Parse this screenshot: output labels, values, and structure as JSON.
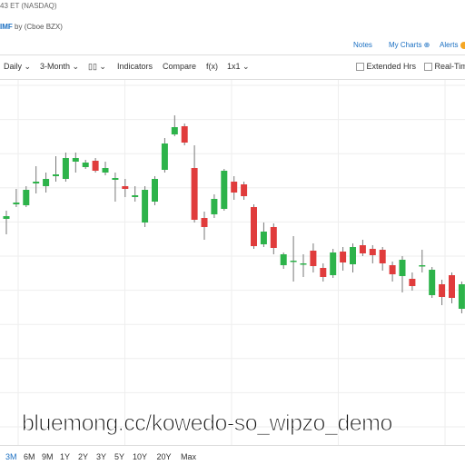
{
  "header": {
    "exchange_time": "43 ET (NASDAQ)",
    "symbol": "IMF",
    "source": "by (Cboe BZX)",
    "notes": "Notes",
    "my_charts": "My Charts",
    "alerts": "Alerts"
  },
  "toolbar": {
    "interval": "Daily",
    "period": "3-Month",
    "indicators": "Indicators",
    "compare": "Compare",
    "fx": "f(x)",
    "layout": "1x1",
    "extended_hours": "Extended Hrs",
    "real_time": "Real-Time"
  },
  "ranges": [
    "3M",
    "6M",
    "9M",
    "1Y",
    "2Y",
    "3Y",
    "5Y",
    "10Y",
    "20Y",
    "Max"
  ],
  "watermark": "bluemong.cc/kowedo-so_wipzo_demo",
  "chart_data": {
    "type": "candlestick",
    "ylim": [
      0,
      352
    ],
    "up_color": "#2db34a",
    "down_color": "#e03c3c",
    "candles": [
      {
        "open": 199,
        "high": 208,
        "low": 182,
        "close": 202
      },
      {
        "open": 215,
        "high": 232,
        "low": 212,
        "close": 217
      },
      {
        "open": 214,
        "high": 235,
        "low": 212,
        "close": 231
      },
      {
        "open": 238,
        "high": 257,
        "low": 227,
        "close": 240
      },
      {
        "open": 235,
        "high": 250,
        "low": 228,
        "close": 243
      },
      {
        "open": 246,
        "high": 268,
        "low": 240,
        "close": 248
      },
      {
        "open": 243,
        "high": 272,
        "low": 240,
        "close": 266
      },
      {
        "open": 262,
        "high": 272,
        "low": 250,
        "close": 266
      },
      {
        "open": 256,
        "high": 264,
        "low": 254,
        "close": 261
      },
      {
        "open": 263,
        "high": 266,
        "low": 250,
        "close": 252
      },
      {
        "open": 250,
        "high": 262,
        "low": 247,
        "close": 255
      },
      {
        "open": 242,
        "high": 250,
        "low": 218,
        "close": 244
      },
      {
        "open": 235,
        "high": 243,
        "low": 223,
        "close": 232
      },
      {
        "open": 223,
        "high": 235,
        "low": 218,
        "close": 225
      },
      {
        "open": 195,
        "high": 235,
        "low": 190,
        "close": 231
      },
      {
        "open": 218,
        "high": 246,
        "low": 214,
        "close": 243
      },
      {
        "open": 253,
        "high": 288,
        "low": 250,
        "close": 282
      },
      {
        "open": 292,
        "high": 313,
        "low": 290,
        "close": 300
      },
      {
        "open": 301,
        "high": 304,
        "low": 280,
        "close": 283
      },
      {
        "open": 255,
        "high": 280,
        "low": 195,
        "close": 198
      },
      {
        "open": 200,
        "high": 207,
        "low": 176,
        "close": 190
      },
      {
        "open": 204,
        "high": 226,
        "low": 200,
        "close": 221
      },
      {
        "open": 210,
        "high": 254,
        "low": 208,
        "close": 252
      },
      {
        "open": 240,
        "high": 246,
        "low": 220,
        "close": 228
      },
      {
        "open": 237,
        "high": 240,
        "low": 220,
        "close": 224
      },
      {
        "open": 212,
        "high": 215,
        "low": 166,
        "close": 169
      },
      {
        "open": 171,
        "high": 195,
        "low": 168,
        "close": 185
      },
      {
        "open": 190,
        "high": 194,
        "low": 160,
        "close": 167
      },
      {
        "open": 148,
        "high": 162,
        "low": 144,
        "close": 160
      },
      {
        "open": 152,
        "high": 180,
        "low": 130,
        "close": 153
      },
      {
        "open": 149,
        "high": 160,
        "low": 135,
        "close": 150
      },
      {
        "open": 164,
        "high": 172,
        "low": 140,
        "close": 147
      },
      {
        "open": 145,
        "high": 150,
        "low": 130,
        "close": 135
      },
      {
        "open": 137,
        "high": 166,
        "low": 134,
        "close": 162
      },
      {
        "open": 163,
        "high": 168,
        "low": 142,
        "close": 151
      },
      {
        "open": 149,
        "high": 172,
        "low": 140,
        "close": 168
      },
      {
        "open": 170,
        "high": 176,
        "low": 158,
        "close": 161
      },
      {
        "open": 166,
        "high": 170,
        "low": 150,
        "close": 159
      },
      {
        "open": 165,
        "high": 168,
        "low": 142,
        "close": 150
      },
      {
        "open": 148,
        "high": 152,
        "low": 130,
        "close": 138
      },
      {
        "open": 136,
        "high": 158,
        "low": 118,
        "close": 154
      },
      {
        "open": 133,
        "high": 140,
        "low": 120,
        "close": 125
      },
      {
        "open": 147,
        "high": 165,
        "low": 140,
        "close": 148
      },
      {
        "open": 115,
        "high": 146,
        "low": 112,
        "close": 143
      },
      {
        "open": 127,
        "high": 132,
        "low": 104,
        "close": 113
      },
      {
        "open": 137,
        "high": 140,
        "low": 106,
        "close": 112
      },
      {
        "open": 100,
        "high": 130,
        "low": 95,
        "close": 127
      }
    ]
  }
}
